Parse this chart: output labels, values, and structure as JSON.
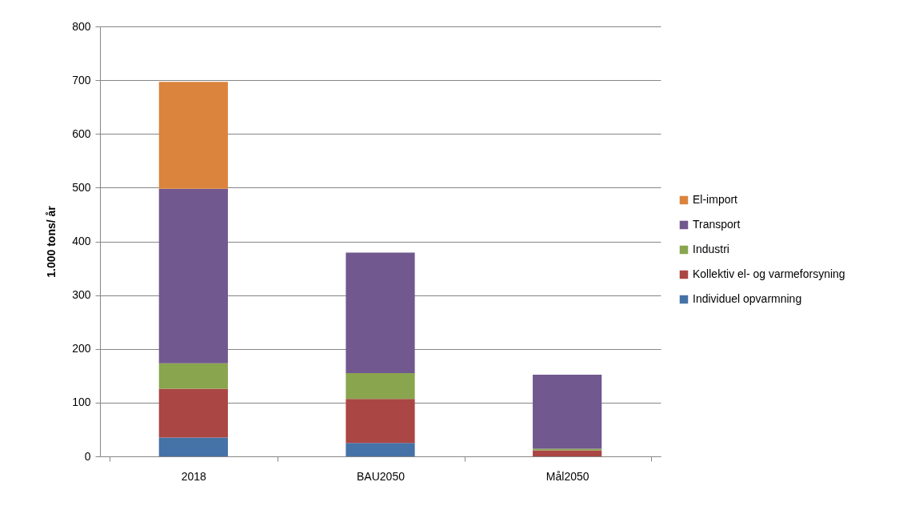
{
  "chart_data": {
    "type": "bar",
    "stacked": true,
    "ylabel": "1.000 tons/ år",
    "categories": [
      "2018",
      "BAU2050",
      "Mål2050"
    ],
    "series": [
      {
        "name": "Individuel opvarmning",
        "color": "#4572a7",
        "values": [
          35,
          25,
          0
        ]
      },
      {
        "name": "Kollektiv el- og varmeforsyning",
        "color": "#aa4643",
        "values": [
          91,
          82,
          11
        ]
      },
      {
        "name": "Industri",
        "color": "#89a54e",
        "values": [
          47,
          48,
          3
        ]
      },
      {
        "name": "Transport",
        "color": "#71588f",
        "values": [
          325,
          224,
          138
        ]
      },
      {
        "name": "El-import",
        "color": "#db843d",
        "values": [
          199,
          0,
          0
        ]
      }
    ],
    "ylim": [
      0,
      800
    ],
    "yticks": [
      0,
      100,
      200,
      300,
      400,
      500,
      600,
      700,
      800
    ],
    "grid": "y",
    "legend": "right"
  }
}
